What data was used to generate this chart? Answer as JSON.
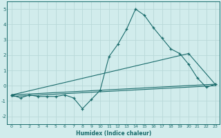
{
  "xlabel": "Humidex (Indice chaleur)",
  "ylabel": "",
  "background_color": "#d1ecec",
  "grid_color": "#b8d8d8",
  "line_color": "#1a6b6b",
  "xlim": [
    -0.5,
    23.5
  ],
  "ylim": [
    -2.5,
    5.5
  ],
  "yticks": [
    -2,
    -1,
    0,
    1,
    2,
    3,
    4,
    5
  ],
  "xticks": [
    0,
    1,
    2,
    3,
    4,
    5,
    6,
    7,
    8,
    9,
    10,
    11,
    12,
    13,
    14,
    15,
    16,
    17,
    18,
    19,
    20,
    21,
    22,
    23
  ],
  "series1_x": [
    0,
    1,
    2,
    3,
    4,
    5,
    6,
    7,
    8,
    9,
    10,
    11,
    12,
    13,
    14,
    15,
    16,
    17,
    18,
    19,
    20,
    21,
    22,
    23
  ],
  "series1_y": [
    -0.6,
    -0.8,
    -0.6,
    -0.7,
    -0.7,
    -0.7,
    -0.6,
    -0.8,
    -1.5,
    -0.9,
    -0.3,
    1.9,
    2.7,
    3.7,
    5.0,
    4.6,
    3.8,
    3.1,
    2.4,
    2.1,
    1.4,
    0.5,
    -0.1,
    0.1
  ],
  "series2_x": [
    0,
    20,
    23
  ],
  "series2_y": [
    -0.6,
    2.1,
    0.1
  ],
  "series3_x": [
    0,
    23
  ],
  "series3_y": [
    -0.6,
    0.1
  ],
  "series4_x": [
    0,
    23
  ],
  "series4_y": [
    -0.7,
    0.0
  ]
}
